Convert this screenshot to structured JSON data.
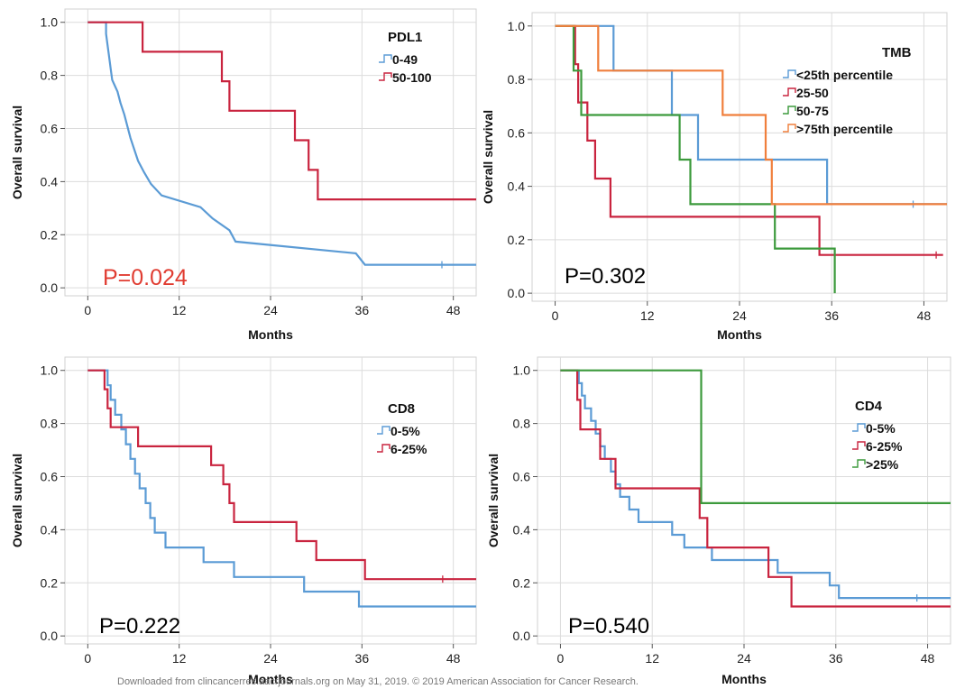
{
  "footer_text": "Downloaded from clincancerres.aacrjournals.org on May 31, 2019. © 2019 American Association for Cancer Research.",
  "chart_data": [
    {
      "type": "line",
      "step": true,
      "panel": "PDL1",
      "xlabel": "Months",
      "ylabel": "Overall survival",
      "xlim": [
        -3,
        51
      ],
      "ylim": [
        -0.03,
        1.05
      ],
      "xticks": [
        0,
        12,
        24,
        36,
        48
      ],
      "yticks": [
        "0.0",
        "0.2",
        "0.4",
        "0.6",
        "0.8",
        "1.0"
      ],
      "grid": true,
      "legend_title": "PDL1",
      "legend_position": "top-right",
      "pvalue": "P=0.024",
      "pvalue_color": "#e03c31",
      "series": [
        {
          "name": "0-49",
          "color": "#5b9bd5",
          "points": [
            [
              0,
              1.0
            ],
            [
              2.4,
              1.0
            ],
            [
              2.4,
              0.957
            ],
            [
              2.6,
              0.913
            ],
            [
              2.8,
              0.87
            ],
            [
              3.0,
              0.826
            ],
            [
              3.2,
              0.783
            ],
            [
              3.9,
              0.739
            ],
            [
              4.3,
              0.696
            ],
            [
              4.8,
              0.652
            ],
            [
              5.2,
              0.609
            ],
            [
              5.6,
              0.565
            ],
            [
              6.1,
              0.522
            ],
            [
              6.6,
              0.478
            ],
            [
              7.4,
              0.435
            ],
            [
              8.3,
              0.391
            ],
            [
              9.7,
              0.348
            ],
            [
              14.8,
              0.304
            ],
            [
              16.4,
              0.261
            ],
            [
              18.6,
              0.217
            ],
            [
              19.4,
              0.174
            ],
            [
              35.2,
              0.13
            ],
            [
              36.4,
              0.087
            ],
            [
              51,
              0.087
            ]
          ],
          "censor": [
            [
              46.5,
              0.087
            ]
          ]
        },
        {
          "name": "50-100",
          "color": "#c9243f",
          "points": [
            [
              0,
              1.0
            ],
            [
              7.2,
              1.0
            ],
            [
              7.2,
              0.889
            ],
            [
              17.6,
              0.889
            ],
            [
              17.6,
              0.778
            ],
            [
              18.6,
              0.778
            ],
            [
              18.6,
              0.667
            ],
            [
              27.2,
              0.667
            ],
            [
              27.2,
              0.556
            ],
            [
              29.0,
              0.556
            ],
            [
              29.0,
              0.444
            ],
            [
              30.2,
              0.444
            ],
            [
              30.2,
              0.333
            ],
            [
              51,
              0.333
            ]
          ],
          "censor": []
        }
      ]
    },
    {
      "type": "line",
      "step": true,
      "panel": "TMB",
      "xlabel": "Months",
      "ylabel": "Overall survival",
      "xlim": [
        -3,
        51
      ],
      "ylim": [
        -0.03,
        1.05
      ],
      "xticks": [
        0,
        12,
        24,
        36,
        48
      ],
      "yticks": [
        "0.0",
        "0.2",
        "0.4",
        "0.6",
        "0.8",
        "1.0"
      ],
      "grid": true,
      "legend_title": "TMB",
      "legend_position": "top-right",
      "pvalue": "P=0.302",
      "pvalue_color": "#000000",
      "series": [
        {
          "name": "<25th percentile",
          "color": "#5b9bd5",
          "points": [
            [
              0,
              1.0
            ],
            [
              7.6,
              1.0
            ],
            [
              7.6,
              0.833
            ],
            [
              15.2,
              0.833
            ],
            [
              15.2,
              0.667
            ],
            [
              18.6,
              0.667
            ],
            [
              18.6,
              0.5
            ],
            [
              35.4,
              0.5
            ],
            [
              35.4,
              0.333
            ],
            [
              51,
              0.333
            ]
          ],
          "censor": [
            [
              46.6,
              0.333
            ]
          ]
        },
        {
          "name": "25-50",
          "color": "#c9243f",
          "points": [
            [
              0,
              1.0
            ],
            [
              2.6,
              1.0
            ],
            [
              2.6,
              0.857
            ],
            [
              3.0,
              0.857
            ],
            [
              3.0,
              0.714
            ],
            [
              4.2,
              0.714
            ],
            [
              4.2,
              0.571
            ],
            [
              5.2,
              0.571
            ],
            [
              5.2,
              0.429
            ],
            [
              7.2,
              0.429
            ],
            [
              7.2,
              0.286
            ],
            [
              34.4,
              0.286
            ],
            [
              34.4,
              0.143
            ],
            [
              50.5,
              0.143
            ]
          ],
          "censor": [
            [
              49.6,
              0.143
            ]
          ]
        },
        {
          "name": "50-75",
          "color": "#3c9a3c",
          "points": [
            [
              0,
              1.0
            ],
            [
              2.4,
              1.0
            ],
            [
              2.4,
              0.833
            ],
            [
              3.4,
              0.833
            ],
            [
              3.4,
              0.667
            ],
            [
              16.2,
              0.667
            ],
            [
              16.2,
              0.5
            ],
            [
              17.6,
              0.5
            ],
            [
              17.6,
              0.333
            ],
            [
              28.6,
              0.333
            ],
            [
              28.6,
              0.167
            ],
            [
              36.4,
              0.167
            ],
            [
              36.4,
              0.0
            ]
          ],
          "censor": []
        },
        {
          "name": ">75th percentile",
          "color": "#f07f3c",
          "points": [
            [
              0,
              1.0
            ],
            [
              5.6,
              1.0
            ],
            [
              5.6,
              0.833
            ],
            [
              21.8,
              0.833
            ],
            [
              21.8,
              0.667
            ],
            [
              27.4,
              0.667
            ],
            [
              27.4,
              0.5
            ],
            [
              28.2,
              0.5
            ],
            [
              28.2,
              0.333
            ],
            [
              51,
              0.333
            ]
          ],
          "censor": []
        }
      ]
    },
    {
      "type": "line",
      "step": true,
      "panel": "CD8",
      "xlabel": "Months",
      "ylabel": "Overall survival",
      "xlim": [
        -3,
        51
      ],
      "ylim": [
        -0.03,
        1.05
      ],
      "xticks": [
        0,
        12,
        24,
        36,
        48
      ],
      "yticks": [
        "0.0",
        "0.2",
        "0.4",
        "0.6",
        "0.8",
        "1.0"
      ],
      "grid": true,
      "legend_title": "CD8",
      "legend_position": "top-right",
      "pvalue": "P=0.222",
      "pvalue_color": "#000000",
      "series": [
        {
          "name": "0-5%",
          "color": "#5b9bd5",
          "points": [
            [
              0,
              1.0
            ],
            [
              2.6,
              1.0
            ],
            [
              2.6,
              0.944
            ],
            [
              3.0,
              0.944
            ],
            [
              3.0,
              0.889
            ],
            [
              3.6,
              0.889
            ],
            [
              3.6,
              0.833
            ],
            [
              4.4,
              0.833
            ],
            [
              4.4,
              0.778
            ],
            [
              5.0,
              0.778
            ],
            [
              5.0,
              0.722
            ],
            [
              5.6,
              0.722
            ],
            [
              5.6,
              0.667
            ],
            [
              6.2,
              0.667
            ],
            [
              6.2,
              0.611
            ],
            [
              6.8,
              0.611
            ],
            [
              6.8,
              0.556
            ],
            [
              7.6,
              0.556
            ],
            [
              7.6,
              0.5
            ],
            [
              8.2,
              0.5
            ],
            [
              8.2,
              0.444
            ],
            [
              8.8,
              0.444
            ],
            [
              8.8,
              0.389
            ],
            [
              10.2,
              0.389
            ],
            [
              10.2,
              0.333
            ],
            [
              15.2,
              0.333
            ],
            [
              15.2,
              0.278
            ],
            [
              19.2,
              0.278
            ],
            [
              19.2,
              0.222
            ],
            [
              28.4,
              0.222
            ],
            [
              28.4,
              0.167
            ],
            [
              35.6,
              0.167
            ],
            [
              35.6,
              0.111
            ],
            [
              51,
              0.111
            ]
          ],
          "censor": []
        },
        {
          "name": "6-25%",
          "color": "#c9243f",
          "points": [
            [
              0,
              1.0
            ],
            [
              2.2,
              1.0
            ],
            [
              2.2,
              0.929
            ],
            [
              2.6,
              0.929
            ],
            [
              2.6,
              0.857
            ],
            [
              3.0,
              0.857
            ],
            [
              3.0,
              0.786
            ],
            [
              6.6,
              0.786
            ],
            [
              6.6,
              0.714
            ],
            [
              16.2,
              0.714
            ],
            [
              16.2,
              0.643
            ],
            [
              17.8,
              0.643
            ],
            [
              17.8,
              0.571
            ],
            [
              18.6,
              0.571
            ],
            [
              18.6,
              0.5
            ],
            [
              19.2,
              0.5
            ],
            [
              19.2,
              0.429
            ],
            [
              27.4,
              0.429
            ],
            [
              27.4,
              0.357
            ],
            [
              30.0,
              0.357
            ],
            [
              30.0,
              0.286
            ],
            [
              36.4,
              0.286
            ],
            [
              36.4,
              0.214
            ],
            [
              51,
              0.214
            ]
          ],
          "censor": [
            [
              46.6,
              0.214
            ]
          ]
        }
      ]
    },
    {
      "type": "line",
      "step": true,
      "panel": "CD4",
      "xlabel": "Months",
      "ylabel": "Overall survival",
      "xlim": [
        -3,
        51
      ],
      "ylim": [
        -0.03,
        1.05
      ],
      "xticks": [
        0,
        12,
        24,
        36,
        48
      ],
      "yticks": [
        "0.0",
        "0.2",
        "0.4",
        "0.6",
        "0.8",
        "1.0"
      ],
      "grid": true,
      "legend_title": "CD4",
      "legend_position": "top-right",
      "pvalue": "P=0.540",
      "pvalue_color": "#000000",
      "series": [
        {
          "name": "0-5%",
          "color": "#5b9bd5",
          "points": [
            [
              0,
              1.0
            ],
            [
              2.4,
              1.0
            ],
            [
              2.4,
              0.952
            ],
            [
              2.8,
              0.952
            ],
            [
              2.8,
              0.905
            ],
            [
              3.2,
              0.905
            ],
            [
              3.2,
              0.857
            ],
            [
              4.0,
              0.857
            ],
            [
              4.0,
              0.81
            ],
            [
              4.6,
              0.81
            ],
            [
              4.6,
              0.762
            ],
            [
              5.2,
              0.762
            ],
            [
              5.2,
              0.714
            ],
            [
              5.8,
              0.714
            ],
            [
              5.8,
              0.667
            ],
            [
              6.6,
              0.667
            ],
            [
              6.6,
              0.619
            ],
            [
              7.2,
              0.619
            ],
            [
              7.2,
              0.571
            ],
            [
              7.8,
              0.571
            ],
            [
              7.8,
              0.524
            ],
            [
              9.0,
              0.524
            ],
            [
              9.0,
              0.476
            ],
            [
              10.2,
              0.476
            ],
            [
              10.2,
              0.429
            ],
            [
              14.6,
              0.429
            ],
            [
              14.6,
              0.381
            ],
            [
              16.2,
              0.381
            ],
            [
              16.2,
              0.333
            ],
            [
              19.8,
              0.333
            ],
            [
              19.8,
              0.286
            ],
            [
              28.4,
              0.286
            ],
            [
              28.4,
              0.238
            ],
            [
              35.2,
              0.238
            ],
            [
              35.2,
              0.19
            ],
            [
              36.4,
              0.19
            ],
            [
              36.4,
              0.143
            ],
            [
              51,
              0.143
            ]
          ],
          "censor": [
            [
              46.6,
              0.143
            ]
          ]
        },
        {
          "name": "6-25%",
          "color": "#c9243f",
          "points": [
            [
              0,
              1.0
            ],
            [
              2.2,
              1.0
            ],
            [
              2.2,
              0.889
            ],
            [
              2.6,
              0.889
            ],
            [
              2.6,
              0.778
            ],
            [
              5.2,
              0.778
            ],
            [
              5.2,
              0.667
            ],
            [
              7.2,
              0.667
            ],
            [
              7.2,
              0.556
            ],
            [
              18.2,
              0.556
            ],
            [
              18.2,
              0.444
            ],
            [
              19.2,
              0.444
            ],
            [
              19.2,
              0.333
            ],
            [
              27.2,
              0.333
            ],
            [
              27.2,
              0.222
            ],
            [
              30.2,
              0.222
            ],
            [
              30.2,
              0.111
            ],
            [
              51,
              0.111
            ]
          ],
          "censor": []
        },
        {
          "name": ">25%",
          "color": "#3c9a3c",
          "points": [
            [
              0,
              1.0
            ],
            [
              18.4,
              1.0
            ],
            [
              18.4,
              0.5
            ],
            [
              51,
              0.5
            ]
          ],
          "censor": []
        }
      ]
    }
  ]
}
